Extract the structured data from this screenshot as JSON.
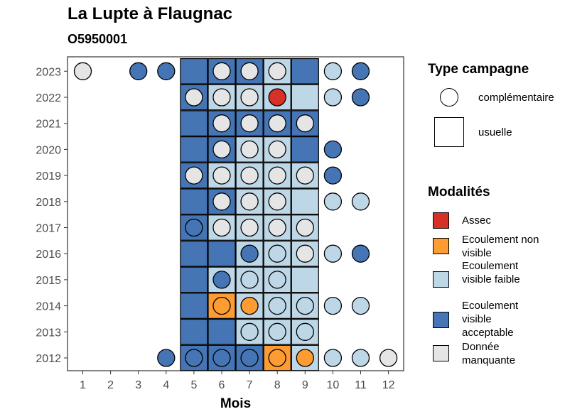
{
  "chart_data": {
    "type": "heatmap",
    "title": "La Lupte à Flaugnac",
    "subtitle": "O5950001",
    "xlabel": "Mois",
    "ylabel": "",
    "x_ticks": [
      "1",
      "2",
      "3",
      "4",
      "5",
      "6",
      "7",
      "8",
      "9",
      "10",
      "11",
      "12"
    ],
    "y_ticks": [
      "2023",
      "2022",
      "2021",
      "2020",
      "2019",
      "2018",
      "2017",
      "2016",
      "2015",
      "2014",
      "2013",
      "2012"
    ],
    "modalites": {
      "title": "Modalités",
      "items": [
        {
          "key": "assec",
          "label": "Assec",
          "color": "#d73027"
        },
        {
          "key": "nonvisible",
          "label": "Ecoulement non visible",
          "color": "#fd9c32"
        },
        {
          "key": "faible",
          "label": "Ecoulement visible faible",
          "color": "#bdd7e7"
        },
        {
          "key": "acceptable",
          "label": "Ecoulement visible acceptable",
          "color": "#4575b4"
        },
        {
          "key": "manquante",
          "label": "Donnée manquante",
          "color": "#e5e5e5"
        }
      ]
    },
    "type_campagne": {
      "title": "Type campagne",
      "items": [
        {
          "key": "complementaire",
          "label": "complémentaire",
          "shape": "circle"
        },
        {
          "key": "usuelle",
          "label": "usuelle",
          "shape": "square"
        }
      ]
    },
    "usuelle": [
      {
        "year": 2023,
        "values": [
          "acceptable",
          "acceptable",
          "acceptable",
          "faible",
          "acceptable"
        ]
      },
      {
        "year": 2022,
        "values": [
          "acceptable",
          "faible",
          "faible",
          "faible",
          "faible"
        ]
      },
      {
        "year": 2021,
        "values": [
          "acceptable",
          "acceptable",
          "acceptable",
          "acceptable",
          "acceptable"
        ]
      },
      {
        "year": 2020,
        "values": [
          "acceptable",
          "acceptable",
          "faible",
          "faible",
          "acceptable"
        ]
      },
      {
        "year": 2019,
        "values": [
          "acceptable",
          "faible",
          "faible",
          "faible",
          "faible"
        ]
      },
      {
        "year": 2018,
        "values": [
          "acceptable",
          "acceptable",
          "faible",
          "faible",
          "faible"
        ]
      },
      {
        "year": 2017,
        "values": [
          "acceptable",
          "faible",
          "faible",
          "faible",
          "faible"
        ]
      },
      {
        "year": 2016,
        "values": [
          "acceptable",
          "acceptable",
          "faible",
          "faible",
          "faible"
        ]
      },
      {
        "year": 2015,
        "values": [
          "acceptable",
          "faible",
          "faible",
          "faible",
          "faible"
        ]
      },
      {
        "year": 2014,
        "values": [
          "acceptable",
          "nonvisible",
          "faible",
          "faible",
          "faible"
        ]
      },
      {
        "year": 2013,
        "values": [
          "acceptable",
          "acceptable",
          "faible",
          "faible",
          "faible"
        ]
      },
      {
        "year": 2012,
        "values": [
          "acceptable",
          "acceptable",
          "acceptable",
          "nonvisible",
          "faible"
        ]
      }
    ],
    "usuelle_months": [
      5,
      6,
      7,
      8,
      9
    ],
    "complementaire": [
      {
        "year": 2023,
        "month": 1,
        "value": "manquante"
      },
      {
        "year": 2023,
        "month": 3,
        "value": "acceptable"
      },
      {
        "year": 2023,
        "month": 4,
        "value": "acceptable"
      },
      {
        "year": 2023,
        "month": 6,
        "value": "manquante"
      },
      {
        "year": 2023,
        "month": 7,
        "value": "manquante"
      },
      {
        "year": 2023,
        "month": 8,
        "value": "manquante"
      },
      {
        "year": 2023,
        "month": 10,
        "value": "faible"
      },
      {
        "year": 2023,
        "month": 11,
        "value": "acceptable"
      },
      {
        "year": 2022,
        "month": 5,
        "value": "manquante"
      },
      {
        "year": 2022,
        "month": 6,
        "value": "manquante"
      },
      {
        "year": 2022,
        "month": 7,
        "value": "manquante"
      },
      {
        "year": 2022,
        "month": 8,
        "value": "assec"
      },
      {
        "year": 2022,
        "month": 10,
        "value": "faible"
      },
      {
        "year": 2022,
        "month": 11,
        "value": "acceptable"
      },
      {
        "year": 2021,
        "month": 6,
        "value": "manquante"
      },
      {
        "year": 2021,
        "month": 7,
        "value": "manquante"
      },
      {
        "year": 2021,
        "month": 8,
        "value": "manquante"
      },
      {
        "year": 2021,
        "month": 9,
        "value": "manquante"
      },
      {
        "year": 2020,
        "month": 6,
        "value": "manquante"
      },
      {
        "year": 2020,
        "month": 7,
        "value": "manquante"
      },
      {
        "year": 2020,
        "month": 8,
        "value": "manquante"
      },
      {
        "year": 2020,
        "month": 10,
        "value": "acceptable"
      },
      {
        "year": 2019,
        "month": 5,
        "value": "manquante"
      },
      {
        "year": 2019,
        "month": 6,
        "value": "manquante"
      },
      {
        "year": 2019,
        "month": 7,
        "value": "manquante"
      },
      {
        "year": 2019,
        "month": 8,
        "value": "manquante"
      },
      {
        "year": 2019,
        "month": 9,
        "value": "manquante"
      },
      {
        "year": 2019,
        "month": 10,
        "value": "acceptable"
      },
      {
        "year": 2018,
        "month": 6,
        "value": "manquante"
      },
      {
        "year": 2018,
        "month": 7,
        "value": "manquante"
      },
      {
        "year": 2018,
        "month": 8,
        "value": "manquante"
      },
      {
        "year": 2018,
        "month": 10,
        "value": "faible"
      },
      {
        "year": 2018,
        "month": 11,
        "value": "faible"
      },
      {
        "year": 2017,
        "month": 5,
        "value": "acceptable"
      },
      {
        "year": 2017,
        "month": 6,
        "value": "manquante"
      },
      {
        "year": 2017,
        "month": 7,
        "value": "manquante"
      },
      {
        "year": 2017,
        "month": 8,
        "value": "manquante"
      },
      {
        "year": 2017,
        "month": 9,
        "value": "manquante"
      },
      {
        "year": 2016,
        "month": 7,
        "value": "acceptable"
      },
      {
        "year": 2016,
        "month": 8,
        "value": "faible"
      },
      {
        "year": 2016,
        "month": 9,
        "value": "manquante"
      },
      {
        "year": 2016,
        "month": 10,
        "value": "faible"
      },
      {
        "year": 2016,
        "month": 11,
        "value": "acceptable"
      },
      {
        "year": 2015,
        "month": 6,
        "value": "acceptable"
      },
      {
        "year": 2015,
        "month": 7,
        "value": "faible"
      },
      {
        "year": 2015,
        "month": 8,
        "value": "faible"
      },
      {
        "year": 2014,
        "month": 6,
        "value": "nonvisible"
      },
      {
        "year": 2014,
        "month": 7,
        "value": "nonvisible"
      },
      {
        "year": 2014,
        "month": 8,
        "value": "faible"
      },
      {
        "year": 2014,
        "month": 9,
        "value": "faible"
      },
      {
        "year": 2014,
        "month": 10,
        "value": "faible"
      },
      {
        "year": 2014,
        "month": 11,
        "value": "faible"
      },
      {
        "year": 2013,
        "month": 7,
        "value": "faible"
      },
      {
        "year": 2013,
        "month": 8,
        "value": "faible"
      },
      {
        "year": 2013,
        "month": 9,
        "value": "faible"
      },
      {
        "year": 2012,
        "month": 4,
        "value": "acceptable"
      },
      {
        "year": 2012,
        "month": 5,
        "value": "acceptable"
      },
      {
        "year": 2012,
        "month": 6,
        "value": "acceptable"
      },
      {
        "year": 2012,
        "month": 7,
        "value": "acceptable"
      },
      {
        "year": 2012,
        "month": 8,
        "value": "nonvisible"
      },
      {
        "year": 2012,
        "month": 9,
        "value": "nonvisible"
      },
      {
        "year": 2012,
        "month": 10,
        "value": "faible"
      },
      {
        "year": 2012,
        "month": 11,
        "value": "faible"
      },
      {
        "year": 2012,
        "month": 12,
        "value": "manquante"
      }
    ]
  }
}
